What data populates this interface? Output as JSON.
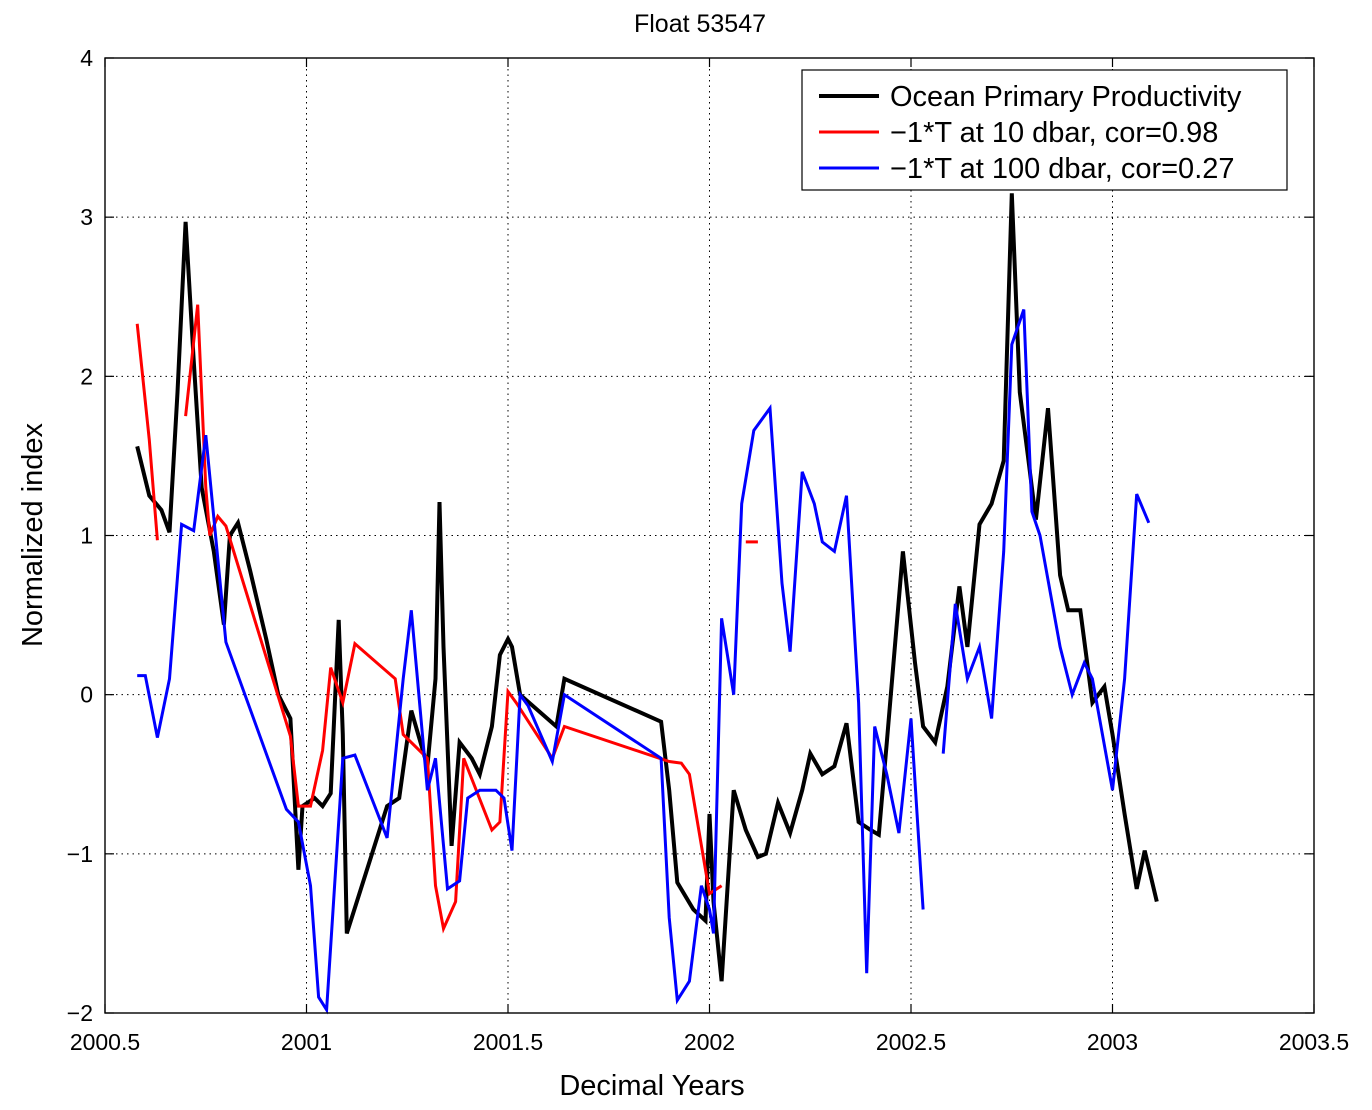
{
  "chart_data": {
    "type": "line",
    "title": "Float 53547",
    "xlabel": "Decimal Years",
    "ylabel": "Normalized index",
    "xlim": [
      2000.5,
      2003.5
    ],
    "ylim": [
      -2,
      4
    ],
    "xticks": [
      2000.5,
      2001,
      2001.5,
      2002,
      2002.5,
      2003,
      2003.5
    ],
    "xtick_labels": [
      "2000.5",
      "2001",
      "2001.5",
      "2002",
      "2002.5",
      "2003",
      "2003.5"
    ],
    "yticks": [
      -2,
      -1,
      0,
      1,
      2,
      3,
      4
    ],
    "ytick_labels": [
      "−2",
      "−1",
      "0",
      "1",
      "2",
      "3",
      "4"
    ],
    "grid": true,
    "legend_position": "top-right",
    "series": [
      {
        "name": "Ocean Primary Productivity",
        "color": "#000000",
        "segments": [
          [
            [
              2000.58,
              1.56
            ],
            [
              2000.61,
              1.25
            ],
            [
              2000.64,
              1.16
            ],
            [
              2000.66,
              1.02
            ],
            [
              2000.68,
              1.9
            ],
            [
              2000.7,
              2.97
            ],
            [
              2000.72,
              2.1
            ],
            [
              2000.74,
              1.3
            ],
            [
              2000.77,
              0.9
            ],
            [
              2000.795,
              0.44
            ],
            [
              2000.81,
              1.0
            ],
            [
              2000.83,
              1.08
            ],
            [
              2000.86,
              0.78
            ],
            [
              2000.9,
              0.35
            ],
            [
              2000.93,
              0.0
            ],
            [
              2000.96,
              -0.15
            ],
            [
              2000.98,
              -1.1
            ],
            [
              2000.99,
              -0.7
            ],
            [
              2001.02,
              -0.65
            ],
            [
              2001.04,
              -0.7
            ],
            [
              2001.06,
              -0.62
            ],
            [
              2001.08,
              0.47
            ],
            [
              2001.09,
              -0.25
            ],
            [
              2001.1,
              -1.5
            ],
            [
              2001.2,
              -0.7
            ],
            [
              2001.23,
              -0.65
            ],
            [
              2001.26,
              -0.1
            ],
            [
              2001.3,
              -0.45
            ],
            [
              2001.32,
              0.1
            ],
            [
              2001.33,
              1.21
            ],
            [
              2001.34,
              0.3
            ],
            [
              2001.36,
              -0.95
            ],
            [
              2001.38,
              -0.3
            ],
            [
              2001.41,
              -0.4
            ],
            [
              2001.43,
              -0.5
            ],
            [
              2001.46,
              -0.2
            ],
            [
              2001.48,
              0.25
            ],
            [
              2001.5,
              0.35
            ],
            [
              2001.51,
              0.3
            ],
            [
              2001.53,
              0.0
            ],
            [
              2001.62,
              -0.2
            ],
            [
              2001.64,
              0.1
            ],
            [
              2001.88,
              -0.17
            ],
            [
              2001.9,
              -0.6
            ],
            [
              2001.92,
              -1.18
            ],
            [
              2001.96,
              -1.35
            ],
            [
              2001.99,
              -1.42
            ],
            [
              2002.0,
              -0.75
            ],
            [
              2002.01,
              -1.3
            ],
            [
              2002.03,
              -1.8
            ],
            [
              2002.06,
              -0.6
            ],
            [
              2002.09,
              -0.85
            ],
            [
              2002.12,
              -1.02
            ],
            [
              2002.14,
              -1.0
            ],
            [
              2002.17,
              -0.68
            ],
            [
              2002.2,
              -0.87
            ],
            [
              2002.23,
              -0.6
            ],
            [
              2002.25,
              -0.37
            ],
            [
              2002.28,
              -0.5
            ],
            [
              2002.31,
              -0.45
            ],
            [
              2002.34,
              -0.18
            ],
            [
              2002.37,
              -0.8
            ],
            [
              2002.4,
              -0.85
            ],
            [
              2002.42,
              -0.88
            ],
            [
              2002.44,
              -0.3
            ],
            [
              2002.48,
              0.9
            ],
            [
              2002.51,
              0.2
            ],
            [
              2002.53,
              -0.2
            ],
            [
              2002.56,
              -0.3
            ],
            [
              2002.59,
              0.05
            ],
            [
              2002.62,
              0.68
            ],
            [
              2002.64,
              0.3
            ],
            [
              2002.67,
              1.07
            ],
            [
              2002.7,
              1.2
            ],
            [
              2002.73,
              1.47
            ],
            [
              2002.75,
              3.15
            ],
            [
              2002.77,
              1.9
            ],
            [
              2002.79,
              1.5
            ],
            [
              2002.81,
              1.1
            ],
            [
              2002.84,
              1.8
            ],
            [
              2002.87,
              0.75
            ],
            [
              2002.89,
              0.53
            ],
            [
              2002.92,
              0.53
            ],
            [
              2002.95,
              -0.05
            ],
            [
              2002.98,
              0.05
            ],
            [
              2003.0,
              -0.25
            ],
            [
              2003.03,
              -0.75
            ],
            [
              2003.06,
              -1.22
            ],
            [
              2003.08,
              -0.98
            ],
            [
              2003.11,
              -1.3
            ]
          ]
        ]
      },
      {
        "name": "−1*T at 10 dbar,   cor=0.98",
        "color": "#ff0000",
        "segments": [
          [
            [
              2000.58,
              2.33
            ],
            [
              2000.61,
              1.6
            ],
            [
              2000.63,
              0.97
            ]
          ],
          [
            [
              2000.7,
              1.75
            ],
            [
              2000.73,
              2.45
            ],
            [
              2000.75,
              1.3
            ],
            [
              2000.76,
              1.0
            ],
            [
              2000.78,
              1.12
            ],
            [
              2000.8,
              1.06
            ],
            [
              2000.96,
              -0.26
            ],
            [
              2000.98,
              -0.7
            ],
            [
              2001.01,
              -0.7
            ],
            [
              2001.04,
              -0.35
            ],
            [
              2001.06,
              0.17
            ],
            [
              2001.09,
              -0.05
            ],
            [
              2001.12,
              0.32
            ],
            [
              2001.22,
              0.1
            ],
            [
              2001.24,
              -0.25
            ],
            [
              2001.3,
              -0.4
            ],
            [
              2001.32,
              -1.2
            ],
            [
              2001.34,
              -1.47
            ],
            [
              2001.37,
              -1.3
            ],
            [
              2001.39,
              -0.4
            ],
            [
              2001.46,
              -0.85
            ],
            [
              2001.48,
              -0.8
            ],
            [
              2001.5,
              0.02
            ],
            [
              2001.52,
              -0.05
            ],
            [
              2001.61,
              -0.4
            ],
            [
              2001.64,
              -0.2
            ],
            [
              2001.9,
              -0.42
            ],
            [
              2001.93,
              -0.43
            ],
            [
              2001.95,
              -0.5
            ],
            [
              2002.0,
              -1.25
            ],
            [
              2002.03,
              -1.2
            ]
          ],
          [
            [
              2002.09,
              0.96
            ],
            [
              2002.12,
              0.96
            ]
          ]
        ]
      },
      {
        "name": "−1*T at 100 dbar,   cor=0.27",
        "color": "#0000ff",
        "segments": [
          [
            [
              2000.58,
              0.12
            ],
            [
              2000.6,
              0.12
            ],
            [
              2000.63,
              -0.27
            ],
            [
              2000.66,
              0.1
            ],
            [
              2000.69,
              1.07
            ],
            [
              2000.72,
              1.03
            ],
            [
              2000.75,
              1.63
            ],
            [
              2000.8,
              0.33
            ],
            [
              2000.95,
              -0.72
            ],
            [
              2000.98,
              -0.8
            ],
            [
              2001.01,
              -1.2
            ],
            [
              2001.03,
              -1.9
            ],
            [
              2001.05,
              -1.98
            ],
            [
              2001.09,
              -0.4
            ],
            [
              2001.12,
              -0.38
            ],
            [
              2001.2,
              -0.9
            ],
            [
              2001.24,
              0.1
            ],
            [
              2001.26,
              0.53
            ],
            [
              2001.3,
              -0.6
            ],
            [
              2001.32,
              -0.4
            ],
            [
              2001.35,
              -1.22
            ],
            [
              2001.38,
              -1.17
            ],
            [
              2001.4,
              -0.65
            ],
            [
              2001.43,
              -0.6
            ],
            [
              2001.47,
              -0.6
            ],
            [
              2001.49,
              -0.65
            ],
            [
              2001.51,
              -0.98
            ],
            [
              2001.53,
              0.0
            ],
            [
              2001.55,
              -0.07
            ],
            [
              2001.61,
              -0.42
            ],
            [
              2001.64,
              0.0
            ],
            [
              2001.88,
              -0.4
            ],
            [
              2001.9,
              -1.4
            ],
            [
              2001.92,
              -1.92
            ],
            [
              2001.95,
              -1.8
            ],
            [
              2001.98,
              -1.2
            ],
            [
              2002.0,
              -1.35
            ],
            [
              2002.01,
              -1.5
            ],
            [
              2002.03,
              0.48
            ],
            [
              2002.06,
              0.0
            ],
            [
              2002.08,
              1.2
            ],
            [
              2002.11,
              1.66
            ],
            [
              2002.15,
              1.8
            ],
            [
              2002.18,
              0.7
            ],
            [
              2002.2,
              0.27
            ],
            [
              2002.23,
              1.4
            ],
            [
              2002.26,
              1.2
            ],
            [
              2002.28,
              0.96
            ],
            [
              2002.31,
              0.9
            ],
            [
              2002.34,
              1.25
            ],
            [
              2002.37,
              -0.05
            ],
            [
              2002.39,
              -1.75
            ],
            [
              2002.41,
              -0.2
            ],
            [
              2002.44,
              -0.5
            ],
            [
              2002.47,
              -0.87
            ],
            [
              2002.5,
              -0.15
            ],
            [
              2002.53,
              -1.35
            ]
          ],
          [
            [
              2002.58,
              -0.37
            ],
            [
              2002.61,
              0.57
            ],
            [
              2002.64,
              0.1
            ],
            [
              2002.67,
              0.3
            ],
            [
              2002.7,
              -0.15
            ],
            [
              2002.73,
              0.9
            ],
            [
              2002.75,
              2.2
            ],
            [
              2002.78,
              2.42
            ],
            [
              2002.8,
              1.15
            ],
            [
              2002.82,
              1.0
            ],
            [
              2002.87,
              0.3
            ],
            [
              2002.9,
              0.0
            ],
            [
              2002.93,
              0.2
            ],
            [
              2002.95,
              0.1
            ],
            [
              2003.0,
              -0.6
            ],
            [
              2003.03,
              0.1
            ],
            [
              2003.06,
              1.26
            ],
            [
              2003.09,
              1.08
            ]
          ]
        ]
      }
    ]
  }
}
